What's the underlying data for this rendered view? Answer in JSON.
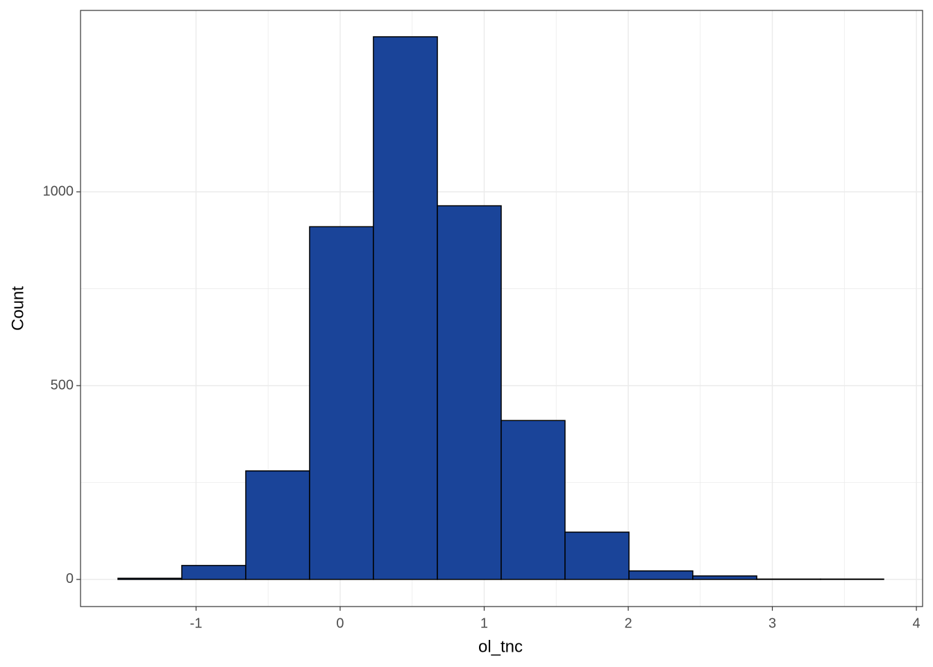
{
  "chart_data": {
    "type": "histogram",
    "x_label": "ol_tnc",
    "y_label": "Count",
    "bins": [
      -1.542,
      -1.099,
      -0.655,
      -0.212,
      0.231,
      0.675,
      1.118,
      1.561,
      2.005,
      2.448,
      2.892,
      3.335,
      3.773
    ],
    "values": [
      3,
      36,
      280,
      910,
      1400,
      964,
      410,
      122,
      22,
      9,
      1,
      1
    ],
    "color": "#1a4499",
    "xlim": [
      -1.802,
      4.043
    ],
    "xticks": [
      -1,
      0,
      1,
      2,
      3,
      4
    ],
    "ylim": [
      -70,
      1468
    ],
    "yticks": [
      0,
      500,
      1000
    ],
    "grid": true
  }
}
